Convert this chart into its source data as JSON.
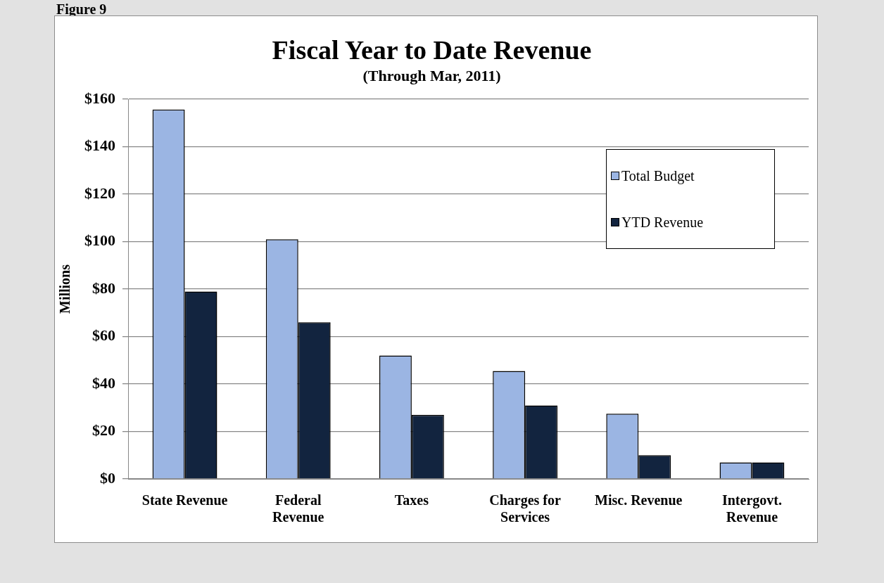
{
  "chart_data": {
    "type": "bar",
    "title": "Fiscal Year to Date Revenue",
    "subtitle": "(Through Mar, 2011)",
    "ylabel": "Millions",
    "annotations": [
      "Figure 9"
    ],
    "categories": [
      "State Revenue",
      "Federal Revenue",
      "Taxes",
      "Charges for Services",
      "Misc. Revenue",
      "Intergovt. Revenue"
    ],
    "series": [
      {
        "name": "Total Budget",
        "color": "#9bb5e3",
        "values": [
          155.6,
          101,
          52,
          45.5,
          27.5,
          7
        ]
      },
      {
        "name": "YTD Revenue",
        "color": "#12243f",
        "values": [
          79,
          66,
          27,
          31,
          10,
          7
        ]
      }
    ],
    "ylim": [
      0,
      160
    ],
    "yticks": [
      {
        "value": 0,
        "label": "$0"
      },
      {
        "value": 20,
        "label": "$20"
      },
      {
        "value": 40,
        "label": "$40"
      },
      {
        "value": 60,
        "label": "$60"
      },
      {
        "value": 80,
        "label": "$80"
      },
      {
        "value": 100,
        "label": "$100"
      },
      {
        "value": 120,
        "label": "$120"
      },
      {
        "value": 140,
        "label": "$140"
      },
      {
        "value": 160,
        "label": "$160"
      }
    ],
    "grid": "y",
    "legend": "top right"
  }
}
